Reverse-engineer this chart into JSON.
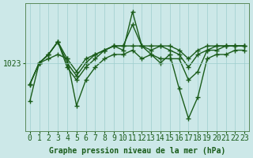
{
  "title": "Graphe pression niveau de la mer (hPa)",
  "background_color": "#cce8e8",
  "plot_bg_color": "#cce8e8",
  "line_color": "#1a5c1a",
  "marker": "+",
  "markersize": 4,
  "linewidth": 1.0,
  "xlabel_fontsize": 7,
  "ylabel_fontsize": 7,
  "title_fontsize": 7,
  "ylabel_value": 1023,
  "x": [
    0,
    1,
    2,
    3,
    4,
    5,
    6,
    7,
    8,
    9,
    10,
    11,
    12,
    13,
    14,
    15,
    16,
    17,
    18,
    19,
    20,
    21,
    22,
    23
  ],
  "series": [
    [
      1018,
      1023,
      1025,
      1028,
      1023,
      1020,
      1023,
      1025,
      1026,
      1027,
      1027,
      1032,
      1027,
      1026,
      1027,
      1026,
      1025,
      1022,
      1025,
      1026,
      1027,
      1027,
      1027,
      1027
    ],
    [
      1018,
      1023,
      1025,
      1028,
      1024,
      1021,
      1024,
      1025,
      1026,
      1027,
      1027,
      1027,
      1027,
      1027,
      1027,
      1027,
      1026,
      1024,
      1026,
      1027,
      1027,
      1027,
      1027,
      1027
    ],
    [
      1018,
      1023,
      1025,
      1028,
      1022,
      1019,
      1022,
      1024,
      1026,
      1027,
      1026,
      1035,
      1027,
      1025,
      1024,
      1024,
      1024,
      1019,
      1021,
      1026,
      1026,
      1027,
      1027,
      1027
    ],
    [
      1014,
      1023,
      1024,
      1025,
      1024,
      1013,
      1019,
      1022,
      1024,
      1025,
      1025,
      1026,
      1024,
      1025,
      1023,
      1025,
      1017,
      1010,
      1015,
      1024,
      1025,
      1025,
      1026,
      1026
    ]
  ],
  "ylim": [
    1007,
    1037
  ],
  "xlim": [
    -0.5,
    23.5
  ],
  "yticks": [
    1023
  ],
  "xticks": [
    0,
    1,
    2,
    3,
    4,
    5,
    6,
    7,
    8,
    9,
    10,
    11,
    12,
    13,
    14,
    15,
    16,
    17,
    18,
    19,
    20,
    21,
    22,
    23
  ],
  "grid_color": "#9ecece",
  "grid_linewidth": 0.5
}
